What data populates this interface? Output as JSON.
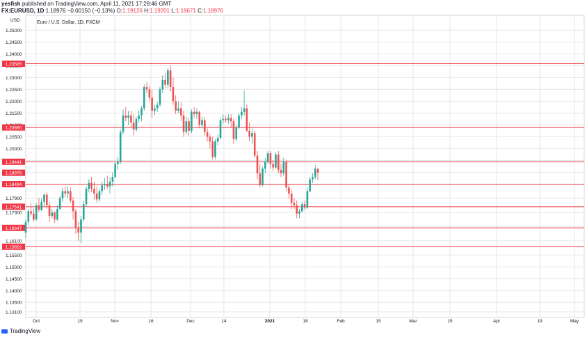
{
  "header": {
    "author": "yesfish",
    "published_text": "published on TradingView.com, April 11, 2021 17:28:46 GMT",
    "symbol": "FX:EURUSD, 1D",
    "last": "1.18976",
    "change": "−0.00150 (−0.13%)",
    "o_label": "O:",
    "o_value": "1.19126",
    "h_label": "H:",
    "h_value": "1.19201",
    "l_label": "L:",
    "l_value": "1.18671",
    "c_label": "C:",
    "c_value": "1.18976"
  },
  "footer": {
    "brand": "TradingView"
  },
  "colors": {
    "up": "#26a69a",
    "down": "#ef5350",
    "level_line": "#f23645",
    "level_badge": "#f23645",
    "grid": "#e6e6e6",
    "axis_text": "#131722"
  },
  "chart_data": {
    "type": "candlestick",
    "title": "Euro / U.S. Dollar, 1D, FXCM",
    "y_unit": "USD",
    "ylim": [
      1.1286,
      1.2563
    ],
    "y_ticks": [
      "1.25000",
      "1.24500",
      "1.24000",
      "1.23500",
      "1.23000",
      "1.22500",
      "1.22000",
      "1.21500",
      "1.21000",
      "1.20500",
      "1.20000",
      "1.19500",
      "1.19000",
      "1.18500",
      "1.17900",
      "1.17300",
      "1.16700",
      "1.16100",
      "1.15500",
      "1.15000",
      "1.14500",
      "1.14000",
      "1.13500",
      "1.13100"
    ],
    "x_ticks": [
      "Oct",
      "19",
      "Nov",
      "16",
      "Dec",
      "14",
      "2021",
      "18",
      "Feb",
      "15",
      "Mar",
      "15",
      "Apr",
      "19",
      "May"
    ],
    "bold_x_tick": "2021",
    "horizontal_levels": [
      "1.23585",
      "1.20890",
      "1.19441",
      "1.18494",
      "1.17541",
      "1.16647",
      "1.15852"
    ],
    "last_price_label": "1.18976",
    "grid": true,
    "candles": [
      {
        "o": 1.1645,
        "h": 1.17,
        "l": 1.162,
        "c": 1.169
      },
      {
        "o": 1.169,
        "h": 1.1745,
        "l": 1.1675,
        "c": 1.1735
      },
      {
        "o": 1.1735,
        "h": 1.177,
        "l": 1.1712,
        "c": 1.1725
      },
      {
        "o": 1.1725,
        "h": 1.1745,
        "l": 1.169,
        "c": 1.17
      },
      {
        "o": 1.17,
        "h": 1.177,
        "l": 1.1695,
        "c": 1.176
      },
      {
        "o": 1.176,
        "h": 1.179,
        "l": 1.1732,
        "c": 1.174
      },
      {
        "o": 1.174,
        "h": 1.179,
        "l": 1.1735,
        "c": 1.1775
      },
      {
        "o": 1.1775,
        "h": 1.181,
        "l": 1.1755,
        "c": 1.1805
      },
      {
        "o": 1.1805,
        "h": 1.1815,
        "l": 1.1745,
        "c": 1.176
      },
      {
        "o": 1.176,
        "h": 1.1775,
        "l": 1.169,
        "c": 1.1715
      },
      {
        "o": 1.1715,
        "h": 1.1745,
        "l": 1.1705,
        "c": 1.173
      },
      {
        "o": 1.173,
        "h": 1.1735,
        "l": 1.1685,
        "c": 1.17
      },
      {
        "o": 1.17,
        "h": 1.176,
        "l": 1.1695,
        "c": 1.1745
      },
      {
        "o": 1.1745,
        "h": 1.18,
        "l": 1.174,
        "c": 1.179
      },
      {
        "o": 1.179,
        "h": 1.1835,
        "l": 1.1775,
        "c": 1.182
      },
      {
        "o": 1.182,
        "h": 1.184,
        "l": 1.1795,
        "c": 1.181
      },
      {
        "o": 1.181,
        "h": 1.184,
        "l": 1.179,
        "c": 1.182
      },
      {
        "o": 1.182,
        "h": 1.1835,
        "l": 1.177,
        "c": 1.178
      },
      {
        "o": 1.178,
        "h": 1.1795,
        "l": 1.17,
        "c": 1.1735
      },
      {
        "o": 1.1735,
        "h": 1.1745,
        "l": 1.164,
        "c": 1.1665
      },
      {
        "o": 1.1665,
        "h": 1.169,
        "l": 1.161,
        "c": 1.1645
      },
      {
        "o": 1.1645,
        "h": 1.1715,
        "l": 1.16,
        "c": 1.17
      },
      {
        "o": 1.17,
        "h": 1.178,
        "l": 1.169,
        "c": 1.1765
      },
      {
        "o": 1.1765,
        "h": 1.184,
        "l": 1.1755,
        "c": 1.183
      },
      {
        "o": 1.183,
        "h": 1.187,
        "l": 1.1815,
        "c": 1.1855
      },
      {
        "o": 1.1855,
        "h": 1.188,
        "l": 1.1815,
        "c": 1.183
      },
      {
        "o": 1.183,
        "h": 1.186,
        "l": 1.1785,
        "c": 1.181
      },
      {
        "o": 1.181,
        "h": 1.184,
        "l": 1.177,
        "c": 1.1785
      },
      {
        "o": 1.1785,
        "h": 1.183,
        "l": 1.1775,
        "c": 1.182
      },
      {
        "o": 1.182,
        "h": 1.186,
        "l": 1.1805,
        "c": 1.1845
      },
      {
        "o": 1.1845,
        "h": 1.1875,
        "l": 1.1825,
        "c": 1.185
      },
      {
        "o": 1.185,
        "h": 1.1885,
        "l": 1.183,
        "c": 1.184
      },
      {
        "o": 1.184,
        "h": 1.188,
        "l": 1.181,
        "c": 1.186
      },
      {
        "o": 1.186,
        "h": 1.19,
        "l": 1.184,
        "c": 1.188
      },
      {
        "o": 1.188,
        "h": 1.1945,
        "l": 1.1875,
        "c": 1.1935
      },
      {
        "o": 1.1935,
        "h": 1.1965,
        "l": 1.191,
        "c": 1.1945
      },
      {
        "o": 1.1945,
        "h": 1.208,
        "l": 1.1935,
        "c": 1.207
      },
      {
        "o": 1.207,
        "h": 1.2165,
        "l": 1.206,
        "c": 1.214
      },
      {
        "o": 1.214,
        "h": 1.2175,
        "l": 1.2115,
        "c": 1.213
      },
      {
        "o": 1.213,
        "h": 1.216,
        "l": 1.21,
        "c": 1.214
      },
      {
        "o": 1.214,
        "h": 1.216,
        "l": 1.2085,
        "c": 1.211
      },
      {
        "o": 1.211,
        "h": 1.2145,
        "l": 1.2055,
        "c": 1.208
      },
      {
        "o": 1.208,
        "h": 1.2135,
        "l": 1.207,
        "c": 1.2125
      },
      {
        "o": 1.2125,
        "h": 1.216,
        "l": 1.211,
        "c": 1.214
      },
      {
        "o": 1.214,
        "h": 1.218,
        "l": 1.2115,
        "c": 1.217
      },
      {
        "o": 1.217,
        "h": 1.227,
        "l": 1.216,
        "c": 1.226
      },
      {
        "o": 1.226,
        "h": 1.228,
        "l": 1.2235,
        "c": 1.225
      },
      {
        "o": 1.225,
        "h": 1.2265,
        "l": 1.22,
        "c": 1.2215
      },
      {
        "o": 1.2215,
        "h": 1.225,
        "l": 1.213,
        "c": 1.216
      },
      {
        "o": 1.216,
        "h": 1.2185,
        "l": 1.214,
        "c": 1.217
      },
      {
        "o": 1.217,
        "h": 1.2195,
        "l": 1.2155,
        "c": 1.2185
      },
      {
        "o": 1.2185,
        "h": 1.226,
        "l": 1.2175,
        "c": 1.225
      },
      {
        "o": 1.225,
        "h": 1.231,
        "l": 1.2235,
        "c": 1.229
      },
      {
        "o": 1.229,
        "h": 1.232,
        "l": 1.2255,
        "c": 1.227
      },
      {
        "o": 1.227,
        "h": 1.234,
        "l": 1.2255,
        "c": 1.233
      },
      {
        "o": 1.233,
        "h": 1.235,
        "l": 1.224,
        "c": 1.226
      },
      {
        "o": 1.226,
        "h": 1.23,
        "l": 1.2185,
        "c": 1.22
      },
      {
        "o": 1.22,
        "h": 1.2225,
        "l": 1.2145,
        "c": 1.216
      },
      {
        "o": 1.216,
        "h": 1.22,
        "l": 1.215,
        "c": 1.217
      },
      {
        "o": 1.217,
        "h": 1.2195,
        "l": 1.2115,
        "c": 1.214
      },
      {
        "o": 1.214,
        "h": 1.216,
        "l": 1.205,
        "c": 1.207
      },
      {
        "o": 1.207,
        "h": 1.2135,
        "l": 1.206,
        "c": 1.2115
      },
      {
        "o": 1.2115,
        "h": 1.213,
        "l": 1.2055,
        "c": 1.2075
      },
      {
        "o": 1.2075,
        "h": 1.2165,
        "l": 1.2065,
        "c": 1.2155
      },
      {
        "o": 1.2155,
        "h": 1.2175,
        "l": 1.213,
        "c": 1.2145
      },
      {
        "o": 1.2145,
        "h": 1.217,
        "l": 1.2125,
        "c": 1.2155
      },
      {
        "o": 1.2155,
        "h": 1.216,
        "l": 1.2085,
        "c": 1.21
      },
      {
        "o": 1.21,
        "h": 1.2135,
        "l": 1.2085,
        "c": 1.212
      },
      {
        "o": 1.212,
        "h": 1.213,
        "l": 1.2055,
        "c": 1.207
      },
      {
        "o": 1.207,
        "h": 1.2085,
        "l": 1.203,
        "c": 1.205
      },
      {
        "o": 1.205,
        "h": 1.206,
        "l": 1.2,
        "c": 1.203
      },
      {
        "o": 1.203,
        "h": 1.205,
        "l": 1.1955,
        "c": 1.1965
      },
      {
        "o": 1.1965,
        "h": 1.204,
        "l": 1.1955,
        "c": 1.203
      },
      {
        "o": 1.203,
        "h": 1.206,
        "l": 1.2015,
        "c": 1.2045
      },
      {
        "o": 1.2045,
        "h": 1.213,
        "l": 1.204,
        "c": 1.212
      },
      {
        "o": 1.212,
        "h": 1.2145,
        "l": 1.2105,
        "c": 1.2125
      },
      {
        "o": 1.2125,
        "h": 1.214,
        "l": 1.211,
        "c": 1.212
      },
      {
        "o": 1.212,
        "h": 1.2145,
        "l": 1.2105,
        "c": 1.213
      },
      {
        "o": 1.213,
        "h": 1.2145,
        "l": 1.209,
        "c": 1.2115
      },
      {
        "o": 1.2115,
        "h": 1.2125,
        "l": 1.202,
        "c": 1.204
      },
      {
        "o": 1.204,
        "h": 1.21,
        "l": 1.203,
        "c": 1.209
      },
      {
        "o": 1.209,
        "h": 1.215,
        "l": 1.208,
        "c": 1.214
      },
      {
        "o": 1.214,
        "h": 1.2175,
        "l": 1.2125,
        "c": 1.2155
      },
      {
        "o": 1.2155,
        "h": 1.2245,
        "l": 1.214,
        "c": 1.217
      },
      {
        "o": 1.217,
        "h": 1.2185,
        "l": 1.207,
        "c": 1.2075
      },
      {
        "o": 1.2075,
        "h": 1.211,
        "l": 1.203,
        "c": 1.205
      },
      {
        "o": 1.205,
        "h": 1.2085,
        "l": 1.202,
        "c": 1.2065
      },
      {
        "o": 1.2065,
        "h": 1.2075,
        "l": 1.196,
        "c": 1.197
      },
      {
        "o": 1.197,
        "h": 1.199,
        "l": 1.187,
        "c": 1.1895
      },
      {
        "o": 1.1895,
        "h": 1.1935,
        "l": 1.1835,
        "c": 1.1845
      },
      {
        "o": 1.1845,
        "h": 1.1925,
        "l": 1.184,
        "c": 1.1915
      },
      {
        "o": 1.1915,
        "h": 1.196,
        "l": 1.1895,
        "c": 1.1945
      },
      {
        "o": 1.1945,
        "h": 1.199,
        "l": 1.1935,
        "c": 1.198
      },
      {
        "o": 1.198,
        "h": 1.199,
        "l": 1.1915,
        "c": 1.1935
      },
      {
        "o": 1.1935,
        "h": 1.195,
        "l": 1.1905,
        "c": 1.192
      },
      {
        "o": 1.192,
        "h": 1.1985,
        "l": 1.1915,
        "c": 1.1975
      },
      {
        "o": 1.1975,
        "h": 1.199,
        "l": 1.1895,
        "c": 1.191
      },
      {
        "o": 1.191,
        "h": 1.1935,
        "l": 1.188,
        "c": 1.1895
      },
      {
        "o": 1.1895,
        "h": 1.196,
        "l": 1.1885,
        "c": 1.1945
      },
      {
        "o": 1.1945,
        "h": 1.1955,
        "l": 1.182,
        "c": 1.1835
      },
      {
        "o": 1.1835,
        "h": 1.185,
        "l": 1.179,
        "c": 1.181
      },
      {
        "o": 1.181,
        "h": 1.1825,
        "l": 1.1745,
        "c": 1.177
      },
      {
        "o": 1.177,
        "h": 1.179,
        "l": 1.1745,
        "c": 1.176
      },
      {
        "o": 1.176,
        "h": 1.178,
        "l": 1.1705,
        "c": 1.1725
      },
      {
        "o": 1.1725,
        "h": 1.1745,
        "l": 1.1705,
        "c": 1.1735
      },
      {
        "o": 1.1735,
        "h": 1.1775,
        "l": 1.173,
        "c": 1.1765
      },
      {
        "o": 1.1765,
        "h": 1.178,
        "l": 1.174,
        "c": 1.175
      },
      {
        "o": 1.175,
        "h": 1.1835,
        "l": 1.1745,
        "c": 1.182
      },
      {
        "o": 1.182,
        "h": 1.188,
        "l": 1.1815,
        "c": 1.187
      },
      {
        "o": 1.187,
        "h": 1.1895,
        "l": 1.1855,
        "c": 1.188
      },
      {
        "o": 1.188,
        "h": 1.193,
        "l": 1.187,
        "c": 1.1915
      },
      {
        "o": 1.1913,
        "h": 1.192,
        "l": 1.1867,
        "c": 1.18976
      }
    ]
  }
}
